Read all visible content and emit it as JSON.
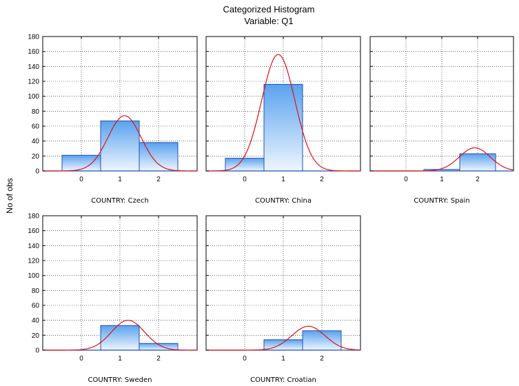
{
  "chart_data": {
    "type": "bar",
    "title": "Categorized Histogram",
    "subtitle": "Variable: Q1",
    "xlabel": "",
    "ylabel": "No of obs",
    "ylim": [
      0,
      180
    ],
    "yticks": [
      0,
      20,
      40,
      60,
      80,
      100,
      120,
      140,
      160,
      180
    ],
    "xticks": [
      0,
      1,
      2
    ],
    "grid": true,
    "colors": {
      "bar_top": "#5aa2ee",
      "bar_bottom": "#eef6ff",
      "bar_edge": "#1f4fb5",
      "curve": "#e01010"
    },
    "panels": [
      {
        "label": "COUNTRY: Czech",
        "bins": [
          {
            "x": 0,
            "value": 21
          },
          {
            "x": 1,
            "value": 67
          },
          {
            "x": 2,
            "value": 38
          }
        ],
        "normal_curve": {
          "mean": 1.12,
          "peak": 74
        }
      },
      {
        "label": "COUNTRY: China",
        "bins": [
          {
            "x": 0,
            "value": 17
          },
          {
            "x": 1,
            "value": 116
          },
          {
            "x": 2,
            "value": 0
          }
        ],
        "normal_curve": {
          "mean": 0.87,
          "peak": 156
        }
      },
      {
        "label": "COUNTRY: Spain",
        "bins": [
          {
            "x": 0,
            "value": 0
          },
          {
            "x": 1,
            "value": 2
          },
          {
            "x": 2,
            "value": 23
          }
        ],
        "normal_curve": {
          "mean": 1.92,
          "peak": 31
        }
      },
      {
        "label": "COUNTRY: Sweden",
        "bins": [
          {
            "x": 0,
            "value": 0
          },
          {
            "x": 1,
            "value": 33
          },
          {
            "x": 2,
            "value": 9
          }
        ],
        "normal_curve": {
          "mean": 1.21,
          "peak": 40
        }
      },
      {
        "label": "COUNTRY: Croatian",
        "bins": [
          {
            "x": 0,
            "value": 0
          },
          {
            "x": 1,
            "value": 14
          },
          {
            "x": 2,
            "value": 26
          }
        ],
        "normal_curve": {
          "mean": 1.65,
          "peak": 32
        }
      }
    ]
  }
}
